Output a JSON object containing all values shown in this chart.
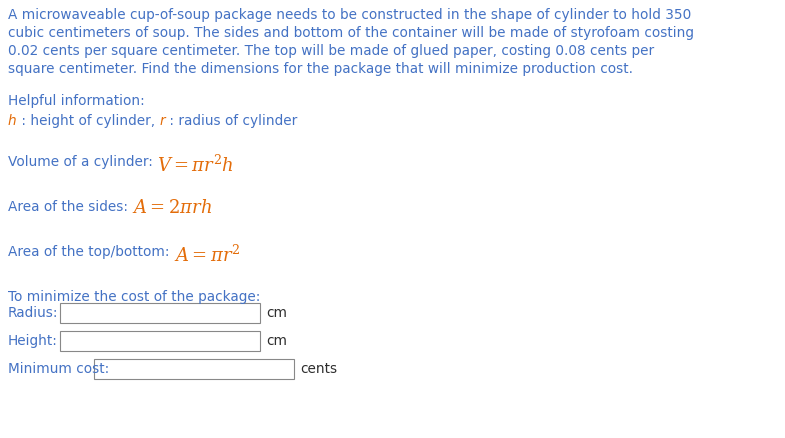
{
  "bg_color": "#ffffff",
  "black": "#2E2E2E",
  "blue": "#4472C4",
  "orange": "#E36C09",
  "fs": 9.8,
  "fs_formula": 13,
  "para_lines": [
    "A microwaveable cup-of-soup package needs to be constructed in the shape of cylinder to hold 350",
    "cubic centimeters of soup. The sides and bottom of the container will be made of styrofoam costing",
    "0.02 cents per square centimeter. The top will be made of glued paper, costing 0.08 cents per",
    "square centimeter. Find the dimensions for the package that will minimize production cost."
  ],
  "helpful_label": "Helpful information:",
  "volume_prefix": "Volume of a cylinder: ",
  "sides_prefix": "Area of the sides: ",
  "tb_prefix": "Area of the top/bottom: ",
  "minimize_label": "To minimize the cost of the package:",
  "radius_label": "Radius:",
  "height_label": "Height:",
  "mincost_label": "Minimum cost:",
  "cm": "cm",
  "cents": "cents",
  "box_edge": "#888888",
  "box_face": "#ffffff"
}
